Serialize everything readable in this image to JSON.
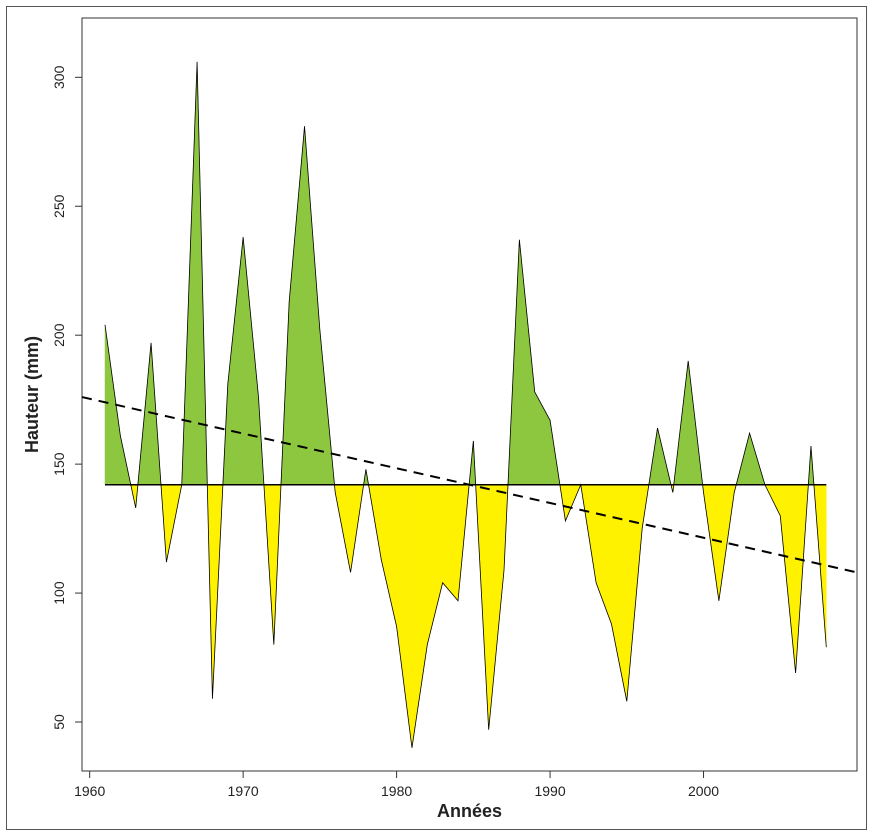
{
  "chart_data": {
    "type": "area",
    "title": "",
    "xlabel": "Années",
    "ylabel": "Hauteur (mm)",
    "xlim": [
      1959.5,
      2010
    ],
    "ylim": [
      31,
      323
    ],
    "x_ticks": [
      1960,
      1970,
      1980,
      1990,
      2000
    ],
    "y_ticks": [
      50,
      100,
      150,
      200,
      250,
      300
    ],
    "baseline": 142,
    "colors": {
      "above": "#8dc63f",
      "below": "#fff200",
      "line": "#000000"
    },
    "trend": {
      "x": [
        1959.5,
        2010
      ],
      "y": [
        176,
        108
      ],
      "style": "dashed"
    },
    "series": [
      {
        "x": [
          1961,
          1962,
          1963,
          1964,
          1965,
          1966,
          1967,
          1968,
          1969,
          1970,
          1971,
          1972,
          1973,
          1974,
          1975,
          1976,
          1977,
          1978,
          1979,
          1980,
          1981,
          1982,
          1983,
          1984,
          1985,
          1986,
          1987,
          1988,
          1989,
          1990,
          1991,
          1992,
          1993,
          1994,
          1995,
          1996,
          1997,
          1998,
          1999,
          2000,
          2001,
          2002,
          2003,
          2004,
          2005,
          2006,
          2007,
          2008
        ],
        "values": [
          204,
          161,
          133,
          197,
          112,
          142,
          306,
          59,
          181,
          238,
          176,
          80,
          213,
          281,
          202,
          139,
          108,
          148,
          113,
          87,
          40,
          80,
          104,
          97,
          159,
          47,
          109,
          237,
          178,
          167,
          128,
          142,
          104,
          88,
          58,
          125,
          164,
          139,
          190,
          139,
          97,
          139,
          162,
          142,
          130,
          69,
          157,
          79
        ]
      }
    ]
  }
}
